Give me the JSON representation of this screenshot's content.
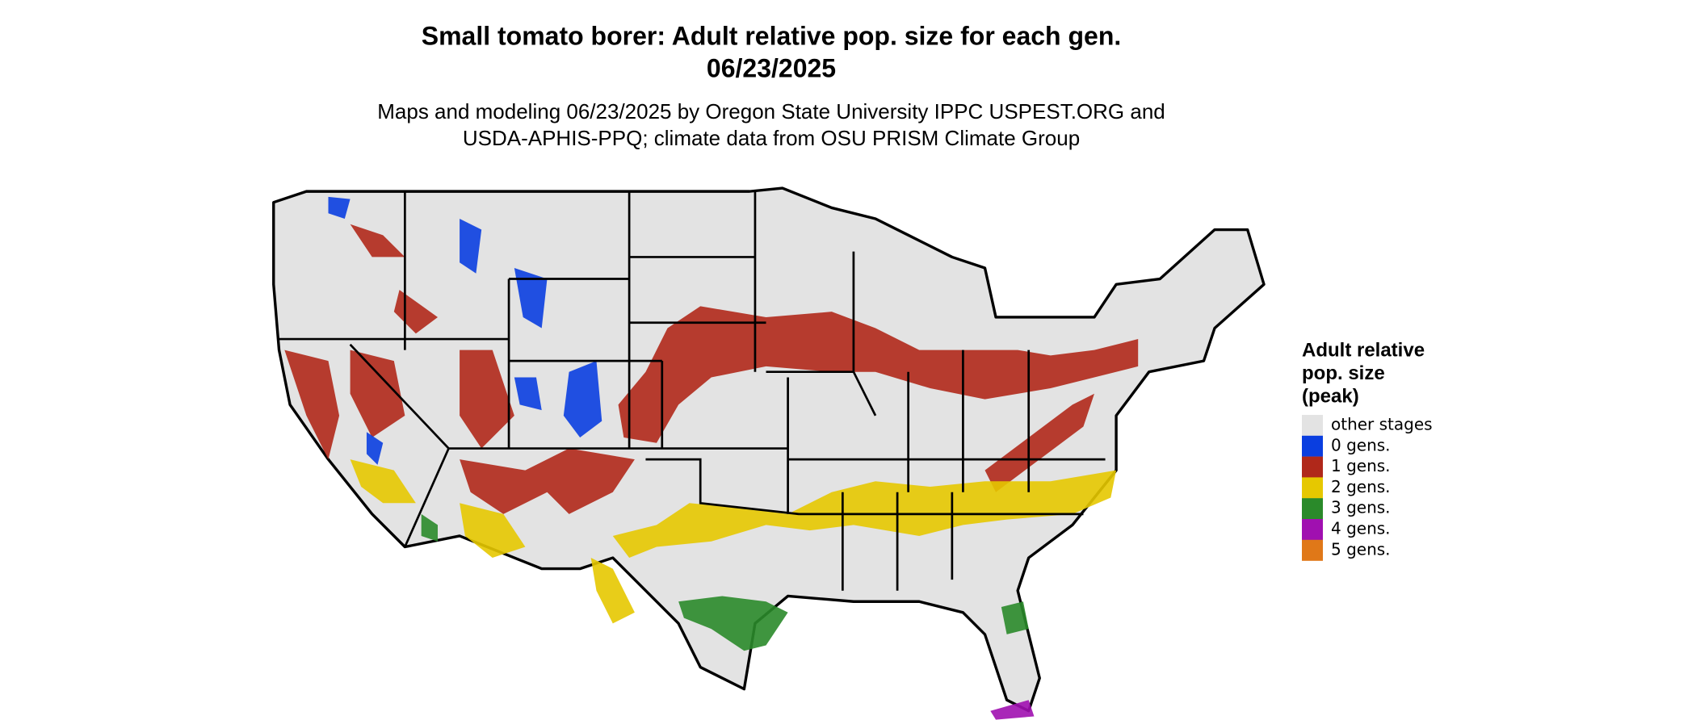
{
  "header": {
    "title": [
      "Small tomato borer: Adult relative pop. size for each gen.",
      "06/23/2025"
    ],
    "subtitle": [
      "Maps and modeling 06/23/2025 by Oregon State University IPPC USPEST.ORG and",
      "USDA-APHIS-PPQ; climate data from OSU PRISM Climate Group"
    ]
  },
  "legend": {
    "title": [
      "Adult relative",
      "pop. size",
      "(peak)"
    ],
    "items": [
      {
        "label": "other stages",
        "color": "#e3e3e3"
      },
      {
        "label": "0 gens.",
        "color": "#0a3ee0"
      },
      {
        "label": "1 gens.",
        "color": "#b0281a"
      },
      {
        "label": "2 gens.",
        "color": "#e6c800"
      },
      {
        "label": "3 gens.",
        "color": "#2a8a2a"
      },
      {
        "label": "4 gens.",
        "color": "#a010b0"
      },
      {
        "label": "5 gens.",
        "color": "#e07818"
      }
    ]
  }
}
